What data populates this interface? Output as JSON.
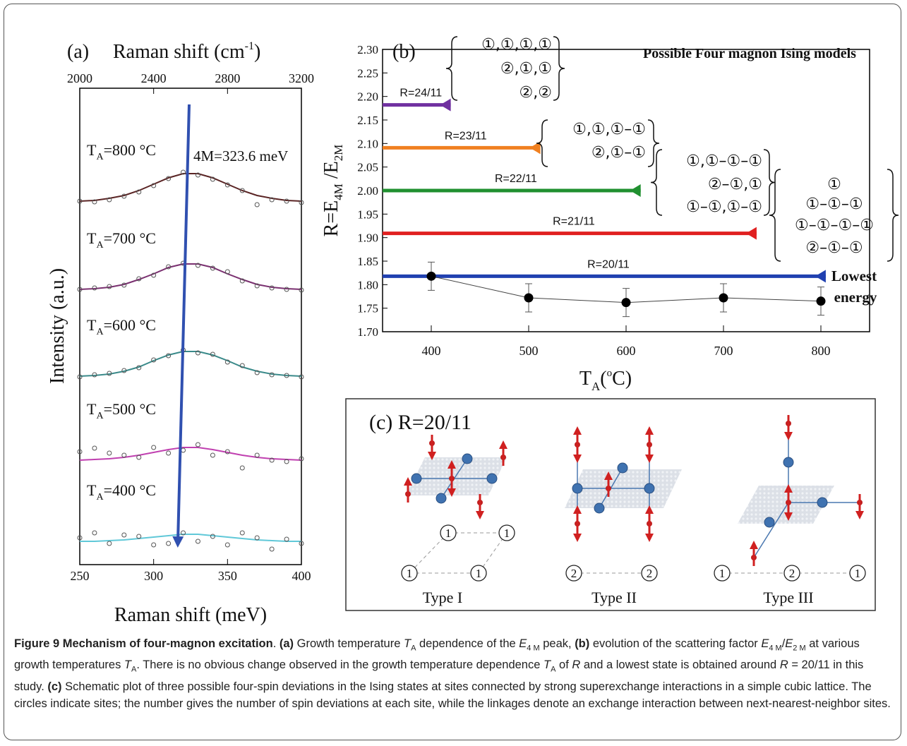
{
  "chart_data": [
    {
      "type": "line",
      "title": "(a)",
      "x2label": "Raman shift (cm",
      "x2label_sup": "-1",
      "x2label_end": ")",
      "ylabel": "Intensity (a.u.)",
      "xlabel": "Raman shift (meV)",
      "xlim": [
        250,
        400
      ],
      "xticks": [
        250,
        300,
        350,
        400
      ],
      "x2lim": [
        2000,
        3200
      ],
      "x2ticks": [
        2000,
        2400,
        2800,
        3200
      ],
      "ylim": [
        0,
        6.75
      ],
      "series_label_symbol": "T",
      "series_label_subscript": "A",
      "annotation": "4M=323.6 meV",
      "x": [
        250,
        260,
        270,
        280,
        290,
        300,
        310,
        320,
        330,
        340,
        350,
        360,
        370,
        380,
        390,
        400
      ],
      "series": [
        {
          "name": "=800 °C",
          "color": "#5a2424",
          "values": [
            5.15,
            5.16,
            5.19,
            5.23,
            5.3,
            5.39,
            5.48,
            5.54,
            5.54,
            5.48,
            5.39,
            5.3,
            5.23,
            5.19,
            5.16,
            5.15
          ],
          "points": [
            5.15,
            5.14,
            5.17,
            5.22,
            5.28,
            5.37,
            5.47,
            5.56,
            5.52,
            5.46,
            5.38,
            5.3,
            5.1,
            5.17,
            5.15,
            5.13
          ]
        },
        {
          "name": "=700 °C",
          "color": "#7a3070",
          "values": [
            3.9,
            3.91,
            3.93,
            3.97,
            4.04,
            4.12,
            4.21,
            4.26,
            4.26,
            4.21,
            4.12,
            4.04,
            3.97,
            3.93,
            3.91,
            3.9
          ],
          "points": [
            3.9,
            3.92,
            3.94,
            3.96,
            4.05,
            4.1,
            4.22,
            4.27,
            4.24,
            4.2,
            4.15,
            4.02,
            3.95,
            3.92,
            3.9,
            3.89
          ]
        },
        {
          "name": "=600 °C",
          "color": "#3a8a8a",
          "values": [
            2.67,
            2.68,
            2.7,
            2.74,
            2.8,
            2.89,
            2.97,
            3.02,
            3.02,
            2.97,
            2.89,
            2.8,
            2.74,
            2.7,
            2.68,
            2.67
          ],
          "points": [
            2.66,
            2.69,
            2.71,
            2.75,
            2.79,
            2.9,
            2.96,
            3.04,
            3.0,
            2.98,
            2.87,
            2.82,
            2.72,
            2.69,
            2.68,
            2.66
          ]
        },
        {
          "name": "=500 °C",
          "color": "#c040b0",
          "values": [
            1.48,
            1.49,
            1.5,
            1.52,
            1.55,
            1.59,
            1.63,
            1.66,
            1.66,
            1.63,
            1.59,
            1.55,
            1.52,
            1.5,
            1.49,
            1.48
          ],
          "points": [
            1.6,
            1.65,
            1.58,
            1.55,
            1.52,
            1.66,
            1.58,
            1.62,
            1.7,
            1.55,
            1.6,
            1.37,
            1.55,
            1.48,
            1.46,
            1.5
          ]
        },
        {
          "name": "=400 °C",
          "color": "#60c8d8",
          "values": [
            0.33,
            0.33,
            0.34,
            0.35,
            0.37,
            0.39,
            0.41,
            0.43,
            0.43,
            0.41,
            0.39,
            0.37,
            0.35,
            0.34,
            0.33,
            0.33
          ],
          "points": [
            0.38,
            0.45,
            0.3,
            0.42,
            0.4,
            0.28,
            0.3,
            0.45,
            0.33,
            0.4,
            0.28,
            0.45,
            0.38,
            0.22,
            0.36,
            0.3
          ]
        }
      ]
    },
    {
      "type": "scatter",
      "title": "(b)",
      "subtitle": "Possible Four magnon Ising models",
      "ylabel_parts": [
        "R=E",
        "4M",
        " /E",
        "2M"
      ],
      "xlabel_parts": [
        "T",
        "A",
        "(",
        "o",
        "C)"
      ],
      "xlim": [
        350,
        850
      ],
      "xticks": [
        400,
        500,
        600,
        700,
        800
      ],
      "ylim": [
        1.7,
        2.3
      ],
      "yticks": [
        {
          "value": 1.7,
          "label": "1.70"
        },
        1.75,
        {
          "value": 1.8,
          "label": "1.80"
        },
        1.85,
        {
          "value": 1.9,
          "label": "1.90"
        },
        1.95,
        {
          "value": 2.0,
          "label": "2.00"
        },
        2.05,
        {
          "value": 2.1,
          "label": "2.10"
        },
        2.15,
        {
          "value": 2.2,
          "label": "2.20"
        },
        2.25,
        {
          "value": 2.3,
          "label": "2.30"
        }
      ],
      "x": [
        400,
        500,
        600,
        700,
        800
      ],
      "values": [
        1.818,
        1.772,
        1.762,
        1.772,
        1.765
      ],
      "errors": [
        0.03,
        0.03,
        0.03,
        0.03,
        0.03
      ],
      "color": "#000000",
      "reference_lines": [
        {
          "name": "R=24/11",
          "x": [
            350,
            420
          ],
          "values": [
            2.182,
            2.182
          ],
          "color": "#7030a0"
        },
        {
          "name": "R=23/11",
          "x": [
            350,
            512
          ],
          "values": [
            2.091,
            2.091
          ],
          "color": "#f08020"
        },
        {
          "name": "R=22/11",
          "x": [
            350,
            615
          ],
          "values": [
            2.0,
            2.0
          ],
          "color": "#209030"
        },
        {
          "name": "R=21/11",
          "x": [
            350,
            734
          ],
          "values": [
            1.909,
            1.909
          ],
          "color": "#e02020"
        },
        {
          "name": "R=20/11",
          "x": [
            350,
            805
          ],
          "values": [
            1.818,
            1.818
          ],
          "color": "#2040b0"
        }
      ],
      "annotation_lines": [
        "Lowest",
        "energy"
      ],
      "models": [
        [
          "①,①,①,①",
          "②,①,①",
          "②,②"
        ],
        [
          "①,①,①–①",
          "②,①–①"
        ],
        [
          "①,①–①–①",
          "②–①,①",
          "①–①,①–①"
        ],
        [
          "①",
          "①–①–①",
          "①–①–①–①",
          "②–①–①"
        ]
      ]
    }
  ],
  "diagram": {
    "title": "(c) R=20/11",
    "types": [
      {
        "label": "Type I",
        "sites": [
          "1",
          "1",
          "1",
          "1"
        ]
      },
      {
        "label": "Type II",
        "sites": [
          "2",
          "2"
        ]
      },
      {
        "label": "Type III",
        "sites": [
          "1",
          "2",
          "1"
        ]
      }
    ]
  },
  "caption": [
    {
      "text": "Figure 9 Mechanism of four-magnon excitation",
      "style": "b"
    },
    {
      "text": ". ",
      "style": "n"
    },
    {
      "text": "(a)",
      "style": "b"
    },
    {
      "text": " Growth temperature ",
      "style": "n"
    },
    {
      "text": "T",
      "style": "i"
    },
    {
      "text": "A",
      "style": "sub"
    },
    {
      "text": " dependence of the ",
      "style": "n"
    },
    {
      "text": "E",
      "style": "i"
    },
    {
      "text": "4 M",
      "style": "sub"
    },
    {
      "text": " peak, ",
      "style": "n"
    },
    {
      "text": "(b)",
      "style": "b"
    },
    {
      "text": " evolution of the scattering factor ",
      "style": "n"
    },
    {
      "text": "E",
      "style": "i"
    },
    {
      "text": "4 M",
      "style": "sub"
    },
    {
      "text": "/",
      "style": "n"
    },
    {
      "text": "E",
      "style": "i"
    },
    {
      "text": "2 M",
      "style": "sub"
    },
    {
      "text": " at various growth temperatures ",
      "style": "n"
    },
    {
      "text": "T",
      "style": "i"
    },
    {
      "text": "A",
      "style": "sub"
    },
    {
      "text": ". There is no obvious change observed in the growth temperature dependence ",
      "style": "n"
    },
    {
      "text": "T",
      "style": "i"
    },
    {
      "text": "A",
      "style": "sub"
    },
    {
      "text": " of ",
      "style": "n"
    },
    {
      "text": "R",
      "style": "i"
    },
    {
      "text": " and a lowest state is obtained around ",
      "style": "n"
    },
    {
      "text": "R",
      "style": "i"
    },
    {
      "text": " = 20/11 in this study. ",
      "style": "n"
    },
    {
      "text": "(c)",
      "style": "b"
    },
    {
      "text": " Schematic plot of three possible four-spin deviations in the Ising states at sites connected by strong superexchange interactions in a simple cubic lattice. The circles indicate sites; the number gives the number of spin deviations at each site, while the linkages denote an exchange interaction between next-nearest-neighbor sites.",
      "style": "n"
    }
  ]
}
